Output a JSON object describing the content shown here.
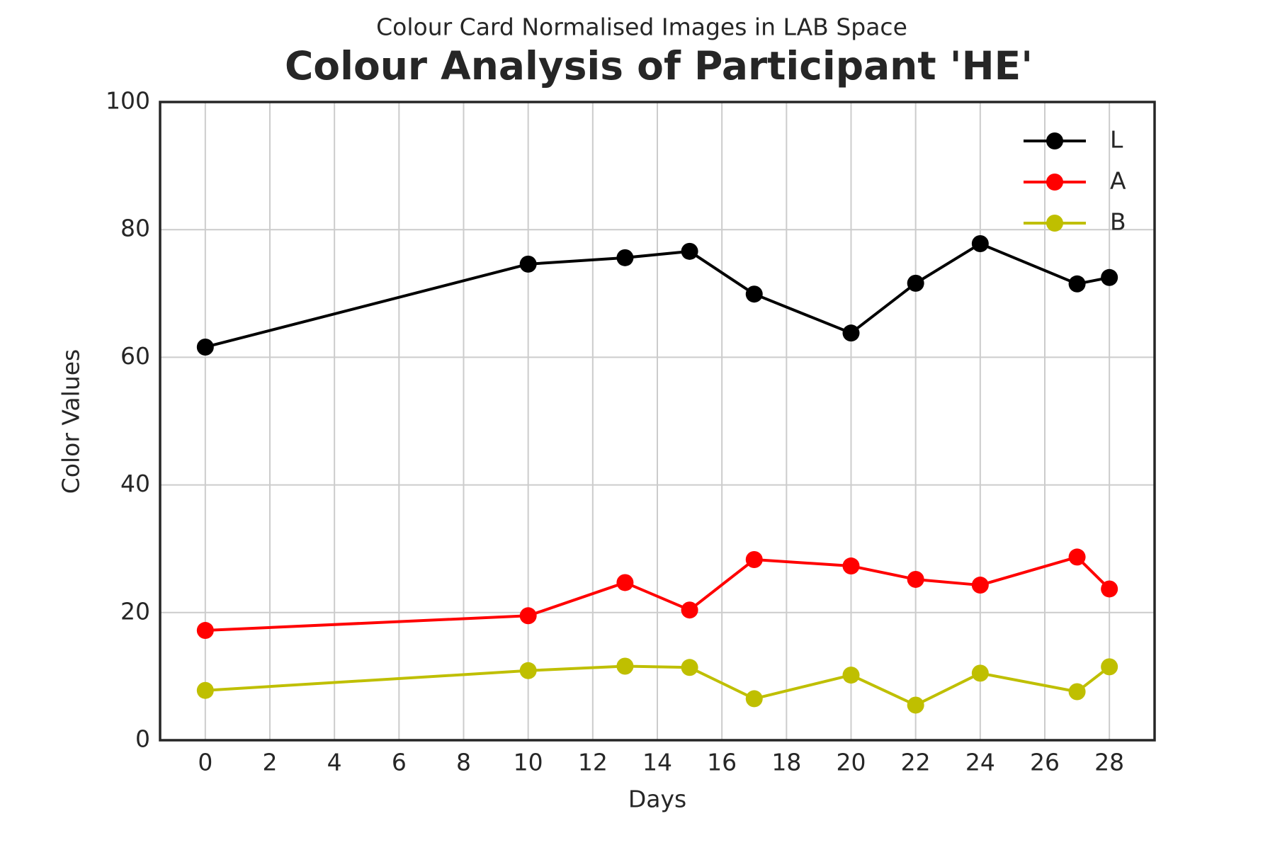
{
  "chart_data": {
    "type": "line",
    "subtitle": "Colour Card Normalised Images in LAB Space",
    "title": "Colour Analysis of Participant 'HE'",
    "x_label": "Days",
    "y_label": "Color Values",
    "x": [
      0,
      10,
      13,
      15,
      17,
      20,
      22,
      24,
      27,
      28
    ],
    "series": [
      {
        "name": "L",
        "color": "#000000",
        "values": [
          61.6,
          74.6,
          75.6,
          76.6,
          69.9,
          63.8,
          71.6,
          77.8,
          71.5,
          72.5
        ]
      },
      {
        "name": "A",
        "color": "#ff0000",
        "values": [
          17.2,
          19.5,
          24.7,
          20.4,
          28.3,
          27.3,
          25.2,
          24.3,
          28.7,
          23.7
        ]
      },
      {
        "name": "B",
        "color": "#bfbf00",
        "values": [
          7.8,
          10.9,
          11.6,
          11.4,
          6.5,
          10.2,
          5.5,
          10.5,
          7.6,
          11.5
        ]
      }
    ],
    "xlim": [
      -1.4,
      29.4
    ],
    "xticks": [
      0,
      2,
      4,
      6,
      8,
      10,
      12,
      14,
      16,
      18,
      20,
      22,
      24,
      26,
      28
    ],
    "ylim": [
      0,
      100
    ],
    "yticks": [
      0,
      20,
      40,
      60,
      80,
      100
    ],
    "grid": true,
    "legend": "upper right"
  }
}
